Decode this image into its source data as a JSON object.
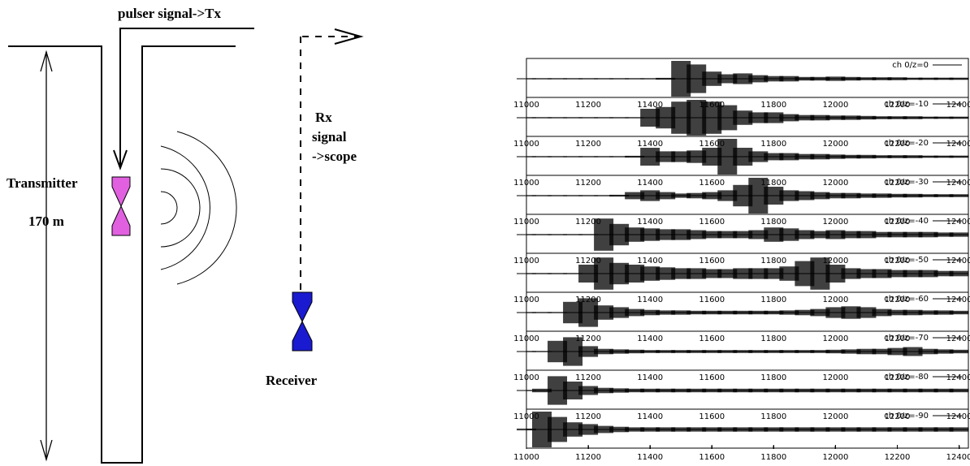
{
  "diagram": {
    "pulser_label": "pulser signal->Tx",
    "rx_label": [
      "Rx",
      "signal",
      "->scope"
    ],
    "transmitter_label": "Transmitter",
    "depth_label": "170 m",
    "receiver_label": "Receiver"
  },
  "chart_data": {
    "type": "envelope",
    "x": [
      11000,
      11050,
      11100,
      11150,
      11200,
      11250,
      11300,
      11350,
      11400,
      11450,
      11500,
      11550,
      11600,
      11650,
      11700,
      11750,
      11800,
      11850,
      11900,
      11950,
      12000,
      12050,
      12100,
      12150,
      12200,
      12250,
      12300,
      12350,
      12400
    ],
    "xlim": [
      11000,
      12430
    ],
    "xticks": [
      11000,
      11200,
      11400,
      11600,
      11800,
      12000,
      12200,
      12400
    ],
    "grid": false,
    "color": "#000000",
    "series": [
      {
        "name": "ch 0/z=0",
        "values": [
          0.03,
          0.03,
          0.03,
          0.03,
          0.03,
          0.03,
          0.03,
          0.03,
          0.03,
          0.05,
          1,
          0.8,
          0.4,
          0.25,
          0.3,
          0.2,
          0.15,
          0.15,
          0.1,
          0.1,
          0.12,
          0.1,
          0.08,
          0.08,
          0.08,
          0.06,
          0.06,
          0.06,
          0.06
        ]
      },
      {
        "name": "ch 0/z=-10",
        "values": [
          0.03,
          0.03,
          0.03,
          0.03,
          0.03,
          0.03,
          0.03,
          0.03,
          0.5,
          0.6,
          0.9,
          1,
          0.9,
          0.7,
          0.4,
          0.3,
          0.3,
          0.2,
          0.15,
          0.15,
          0.12,
          0.12,
          0.1,
          0.08,
          0.08,
          0.08,
          0.06,
          0.06,
          0.06
        ]
      },
      {
        "name": "ch 0/z=-20",
        "values": [
          0.03,
          0.03,
          0.03,
          0.03,
          0.03,
          0.03,
          0.03,
          0.05,
          0.5,
          0.3,
          0.3,
          0.35,
          0.5,
          1,
          0.5,
          0.3,
          0.2,
          0.2,
          0.15,
          0.15,
          0.12,
          0.1,
          0.1,
          0.08,
          0.08,
          0.08,
          0.06,
          0.06,
          0.06
        ]
      },
      {
        "name": "ch 0/z=-30",
        "values": [
          0.03,
          0.03,
          0.03,
          0.03,
          0.03,
          0.03,
          0.05,
          0.2,
          0.3,
          0.2,
          0.12,
          0.15,
          0.2,
          0.3,
          0.6,
          1,
          0.5,
          0.3,
          0.25,
          0.2,
          0.15,
          0.15,
          0.12,
          0.12,
          0.1,
          0.1,
          0.08,
          0.08,
          0.08
        ]
      },
      {
        "name": "ch 0/z=-40",
        "values": [
          0.03,
          0.03,
          0.03,
          0.03,
          0.03,
          0.9,
          0.6,
          0.4,
          0.35,
          0.3,
          0.3,
          0.25,
          0.2,
          0.2,
          0.2,
          0.25,
          0.4,
          0.35,
          0.25,
          0.2,
          0.25,
          0.2,
          0.2,
          0.15,
          0.15,
          0.15,
          0.15,
          0.12,
          0.12
        ]
      },
      {
        "name": "ch 0/z=-50",
        "values": [
          0.03,
          0.03,
          0.03,
          0.03,
          0.5,
          0.9,
          0.6,
          0.5,
          0.4,
          0.35,
          0.3,
          0.3,
          0.25,
          0.25,
          0.3,
          0.3,
          0.3,
          0.4,
          0.7,
          0.9,
          0.5,
          0.3,
          0.25,
          0.25,
          0.2,
          0.2,
          0.2,
          0.15,
          0.15
        ]
      },
      {
        "name": "ch 0/z=-60",
        "values": [
          0.03,
          0.03,
          0.03,
          0.6,
          0.8,
          0.4,
          0.3,
          0.2,
          0.15,
          0.12,
          0.12,
          0.1,
          0.1,
          0.1,
          0.1,
          0.1,
          0.1,
          0.12,
          0.15,
          0.2,
          0.3,
          0.35,
          0.3,
          0.2,
          0.15,
          0.15,
          0.12,
          0.12,
          0.1
        ]
      },
      {
        "name": "ch 0/z=-70",
        "values": [
          0.03,
          0.03,
          0.6,
          0.8,
          0.3,
          0.15,
          0.12,
          0.1,
          0.08,
          0.08,
          0.08,
          0.08,
          0.08,
          0.08,
          0.08,
          0.08,
          0.08,
          0.08,
          0.08,
          0.08,
          0.1,
          0.12,
          0.15,
          0.15,
          0.2,
          0.25,
          0.15,
          0.12,
          0.1
        ]
      },
      {
        "name": "ch 0/z=-80",
        "values": [
          0.03,
          0.1,
          0.8,
          0.5,
          0.25,
          0.15,
          0.12,
          0.1,
          0.1,
          0.1,
          0.1,
          0.1,
          0.1,
          0.1,
          0.1,
          0.1,
          0.1,
          0.1,
          0.1,
          0.1,
          0.1,
          0.1,
          0.1,
          0.1,
          0.1,
          0.1,
          0.1,
          0.1,
          0.1
        ]
      },
      {
        "name": "ch 0/z=-90",
        "values": [
          0.05,
          1,
          0.7,
          0.4,
          0.3,
          0.2,
          0.15,
          0.12,
          0.12,
          0.12,
          0.12,
          0.12,
          0.12,
          0.12,
          0.12,
          0.12,
          0.12,
          0.12,
          0.12,
          0.12,
          0.12,
          0.12,
          0.12,
          0.12,
          0.12,
          0.12,
          0.12,
          0.12,
          0.12
        ]
      }
    ]
  }
}
